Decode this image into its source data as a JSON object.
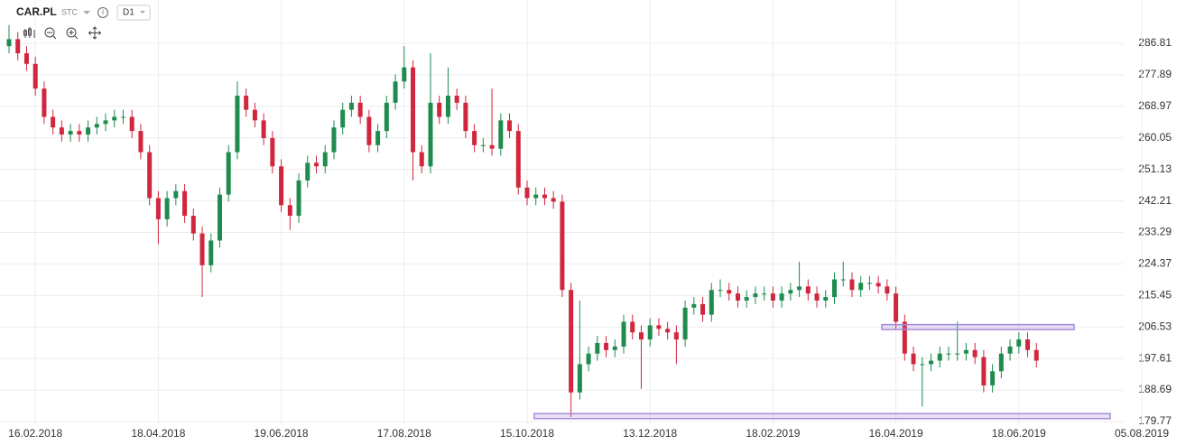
{
  "chart_data": {
    "type": "candlestick",
    "title": "CAR.PL",
    "subtitle": "STC",
    "interval": "D1",
    "categories": [
      null,
      null,
      null,
      "16.02.2018",
      null,
      null,
      null,
      null,
      null,
      null,
      null,
      null,
      null,
      null,
      null,
      null,
      null,
      "18.04.2018",
      null,
      null,
      null,
      null,
      null,
      null,
      null,
      null,
      null,
      null,
      null,
      null,
      null,
      "19.06.2018",
      null,
      null,
      null,
      null,
      null,
      null,
      null,
      null,
      null,
      null,
      null,
      null,
      null,
      "17.08.2018",
      null,
      null,
      null,
      null,
      null,
      null,
      null,
      null,
      null,
      null,
      null,
      null,
      null,
      "15.10.2018",
      null,
      null,
      null,
      null,
      null,
      null,
      null,
      null,
      null,
      null,
      null,
      null,
      null,
      "13.12.2018",
      null,
      null,
      null,
      null,
      null,
      null,
      null,
      null,
      null,
      null,
      null,
      null,
      null,
      "18.02.2019",
      null,
      null,
      null,
      null,
      null,
      null,
      null,
      null,
      null,
      null,
      null,
      null,
      null,
      "16.04.2019",
      null,
      null,
      null,
      null,
      null,
      null,
      null,
      null,
      null,
      null,
      null,
      null,
      null,
      "18.06.2019",
      null,
      null,
      null,
      null,
      null,
      null,
      null,
      null,
      null,
      null,
      null,
      null,
      null,
      "05.08.2019"
    ],
    "open": [
      286,
      288,
      284,
      281,
      274,
      266,
      263,
      261,
      262,
      261,
      263,
      264,
      265,
      266,
      266,
      262,
      256,
      243,
      237,
      243,
      245,
      238,
      233,
      224,
      231,
      244,
      256,
      272,
      268,
      265,
      260,
      252,
      241,
      238,
      248,
      253,
      252,
      256,
      263,
      268,
      270,
      266,
      258,
      262,
      270,
      276,
      280,
      256,
      252,
      270,
      266,
      272,
      270,
      262,
      258,
      258,
      257,
      265,
      262,
      246,
      243,
      244,
      243,
      242,
      217,
      188,
      196,
      199,
      202,
      200,
      201,
      208,
      205,
      203,
      207,
      206,
      205,
      203,
      212,
      213,
      210,
      217,
      217,
      216,
      214,
      215,
      216,
      216,
      214,
      216,
      217,
      218,
      216,
      214,
      215,
      220,
      220,
      217,
      219,
      219,
      218,
      216,
      208,
      199,
      196,
      196,
      197,
      199,
      199,
      199,
      200,
      198,
      190,
      194,
      199,
      201,
      203,
      200,
      null,
      null,
      null,
      null,
      null,
      null,
      null,
      null,
      null,
      null,
      null,
      null
    ],
    "high": [
      292,
      290,
      286,
      283,
      276,
      268,
      265,
      264,
      264,
      265,
      266,
      267,
      268,
      268,
      268,
      264,
      258,
      245,
      245,
      247,
      247,
      240,
      235,
      233,
      246,
      258,
      276,
      274,
      270,
      267,
      262,
      254,
      243,
      250,
      255,
      255,
      258,
      265,
      270,
      272,
      272,
      268,
      264,
      272,
      278,
      286,
      282,
      258,
      284,
      272,
      280,
      274,
      272,
      264,
      260,
      274,
      267,
      267,
      264,
      248,
      246,
      246,
      245,
      244,
      219,
      214,
      201,
      204,
      204,
      203,
      210,
      210,
      207,
      209,
      209,
      208,
      207,
      214,
      215,
      215,
      219,
      220,
      219,
      218,
      217,
      218,
      218,
      218,
      218,
      219,
      225,
      220,
      218,
      217,
      222,
      225,
      222,
      221,
      221,
      221,
      220,
      218,
      210,
      201,
      198,
      199,
      201,
      201,
      208,
      202,
      202,
      200,
      196,
      201,
      203,
      205,
      205,
      202,
      null,
      null,
      null,
      null,
      null,
      null,
      null,
      null,
      null,
      null,
      null,
      null
    ],
    "low": [
      284,
      282,
      279,
      272,
      264,
      261,
      259,
      259,
      259,
      259,
      261,
      262,
      263,
      264,
      260,
      254,
      241,
      230,
      235,
      241,
      236,
      231,
      215,
      222,
      229,
      242,
      254,
      266,
      263,
      258,
      250,
      239,
      234,
      236,
      246,
      250,
      250,
      254,
      261,
      266,
      264,
      256,
      256,
      260,
      268,
      274,
      248,
      250,
      250,
      264,
      264,
      268,
      260,
      256,
      256,
      255,
      255,
      260,
      244,
      241,
      241,
      241,
      240,
      215,
      181,
      186,
      194,
      197,
      198,
      198,
      199,
      203,
      189,
      201,
      204,
      203,
      196,
      201,
      210,
      208,
      208,
      215,
      214,
      212,
      212,
      213,
      214,
      212,
      212,
      214,
      215,
      214,
      212,
      212,
      213,
      218,
      215,
      215,
      217,
      216,
      214,
      206,
      197,
      194,
      184,
      194,
      195,
      197,
      197,
      197,
      196,
      188,
      188,
      192,
      197,
      199,
      198,
      195,
      null,
      null,
      null,
      null,
      null,
      null,
      null,
      null,
      null,
      null,
      null,
      null
    ],
    "close": [
      288,
      284,
      281,
      274,
      266,
      263,
      261,
      262,
      261,
      263,
      264,
      265,
      266,
      266,
      262,
      256,
      243,
      237,
      243,
      245,
      238,
      233,
      224,
      231,
      244,
      256,
      272,
      268,
      265,
      260,
      252,
      241,
      238,
      248,
      253,
      252,
      256,
      263,
      268,
      270,
      266,
      258,
      262,
      270,
      276,
      280,
      256,
      252,
      270,
      266,
      272,
      270,
      262,
      258,
      258,
      257,
      265,
      262,
      246,
      243,
      244,
      243,
      242,
      217,
      188,
      196,
      199,
      202,
      200,
      201,
      208,
      205,
      203,
      207,
      206,
      205,
      203,
      212,
      213,
      210,
      217,
      217,
      216,
      214,
      215,
      216,
      216,
      214,
      216,
      217,
      218,
      216,
      214,
      215,
      220,
      220,
      217,
      219,
      219,
      218,
      216,
      208,
      199,
      196,
      196,
      197,
      199,
      199,
      199,
      200,
      198,
      190,
      194,
      199,
      201,
      203,
      200,
      197,
      null,
      null,
      null,
      null,
      null,
      null,
      null,
      null,
      null,
      null,
      null,
      null
    ],
    "up_color": "#1e8c4e",
    "down_color": "#d0263e",
    "ylim": [
      179.0,
      297.8
    ],
    "yticks": [
      179.77,
      188.69,
      197.61,
      206.53,
      215.45,
      224.37,
      233.29,
      242.21,
      251.13,
      260.05,
      268.97,
      277.89,
      286.81
    ],
    "grid": true,
    "zones": [
      {
        "x": [
          99.4,
          121.3
        ],
        "y": [
          205.8,
          207.2
        ]
      },
      {
        "x": [
          59.8,
          125.4
        ],
        "y": [
          180.6,
          182.0
        ]
      }
    ],
    "zone_color": "#a78bdb"
  }
}
